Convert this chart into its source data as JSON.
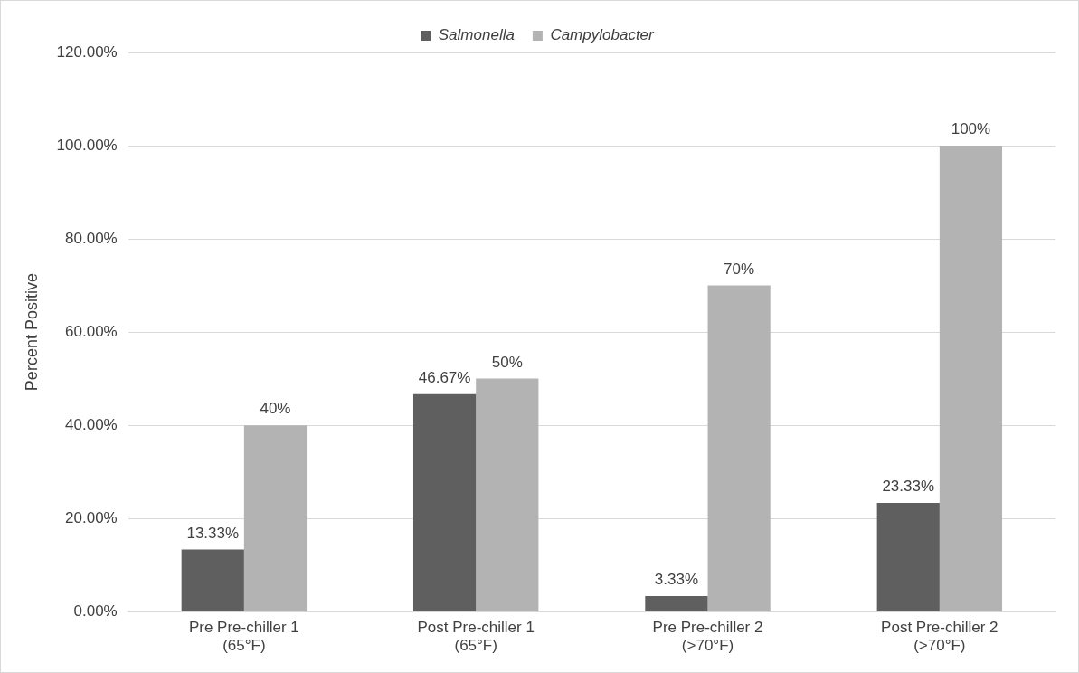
{
  "chart_data": {
    "type": "bar",
    "ylabel": "Percent Positive",
    "categories": [
      "Pre Pre-chiller 1\n(65°F)",
      "Post Pre-chiller 1\n(65°F)",
      "Pre Pre-chiller 2\n(>70°F)",
      "Post Pre-chiller 2\n(>70°F)"
    ],
    "series": [
      {
        "name": "Salmonella",
        "color": "#5f5f5f",
        "values": [
          13.33,
          46.67,
          3.33,
          23.33
        ],
        "value_labels": [
          "13.33%",
          "46.67%",
          "3.33%",
          "23.33%"
        ]
      },
      {
        "name": "Campylobacter",
        "color": "#b3b3b3",
        "values": [
          40,
          50,
          70,
          100
        ],
        "value_labels": [
          "40%",
          "50%",
          "70%",
          "100%"
        ]
      }
    ],
    "ylim": [
      0,
      120
    ],
    "yticks": [
      {
        "value": 0,
        "label": "0.00%"
      },
      {
        "value": 20,
        "label": "20.00%"
      },
      {
        "value": 40,
        "label": "40.00%"
      },
      {
        "value": 60,
        "label": "60.00%"
      },
      {
        "value": 80,
        "label": "80.00%"
      },
      {
        "value": 100,
        "label": "100.00%"
      },
      {
        "value": 120,
        "label": "120.00%"
      }
    ],
    "grid": "y",
    "legend": "top"
  }
}
